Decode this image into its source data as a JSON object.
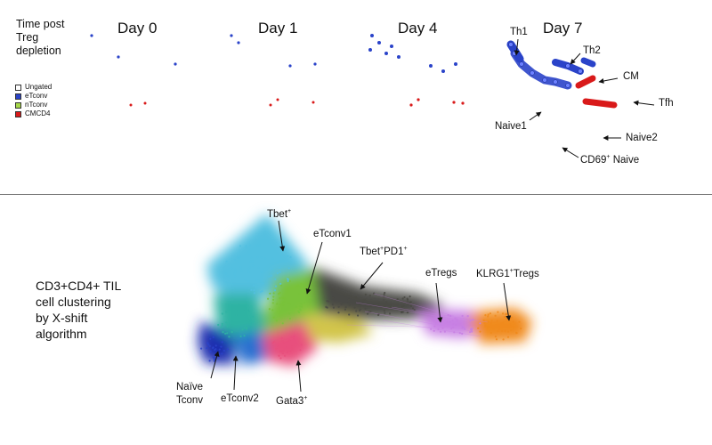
{
  "top": {
    "title": [
      "Time post",
      "Treg",
      "depletion"
    ],
    "legend": [
      {
        "label": "Ungated",
        "color": "#ffffff"
      },
      {
        "label": "eTconv",
        "color": "#2a43c9"
      },
      {
        "label": "nTconv",
        "color": "#a6d84a"
      },
      {
        "label": "CMCD4",
        "color": "#d91a1a"
      }
    ],
    "days": [
      "Day 0",
      "Day 1",
      "Day 4",
      "Day 7"
    ],
    "annotations": [
      "Th1",
      "Th2",
      "CM",
      "Tfh",
      "Naive1",
      "Naive2"
    ],
    "cd69": {
      "pre": "CD69",
      "sup": "+",
      "post": " Naive"
    }
  },
  "bottom": {
    "title": [
      "CD3+CD4+ TIL",
      "cell clustering",
      "by X-shift",
      "algorithm"
    ],
    "tbet": {
      "text": "Tbet",
      "sup": "+"
    },
    "etconv1": "eTconv1",
    "tbetpd1": {
      "t1": "Tbet",
      "s1": "+",
      "t2": "PD1",
      "s2": "+"
    },
    "etregs": "eTregs",
    "klrg1": {
      "t1": "KLRG1",
      "s1": "+",
      "t2": "Tregs"
    },
    "naive": [
      "Naïve",
      "Tconv"
    ],
    "etconv2": "eTconv2",
    "gata3": {
      "text": "Gata3",
      "sup": "+"
    }
  },
  "colors": {
    "blue": "#2a43c9",
    "green": "#a6d84a",
    "red": "#d91a1a",
    "orange": "#f08a1c",
    "violet": "#c77fe3",
    "teal": "#2fb3a3",
    "cyan": "#52c0e0"
  }
}
